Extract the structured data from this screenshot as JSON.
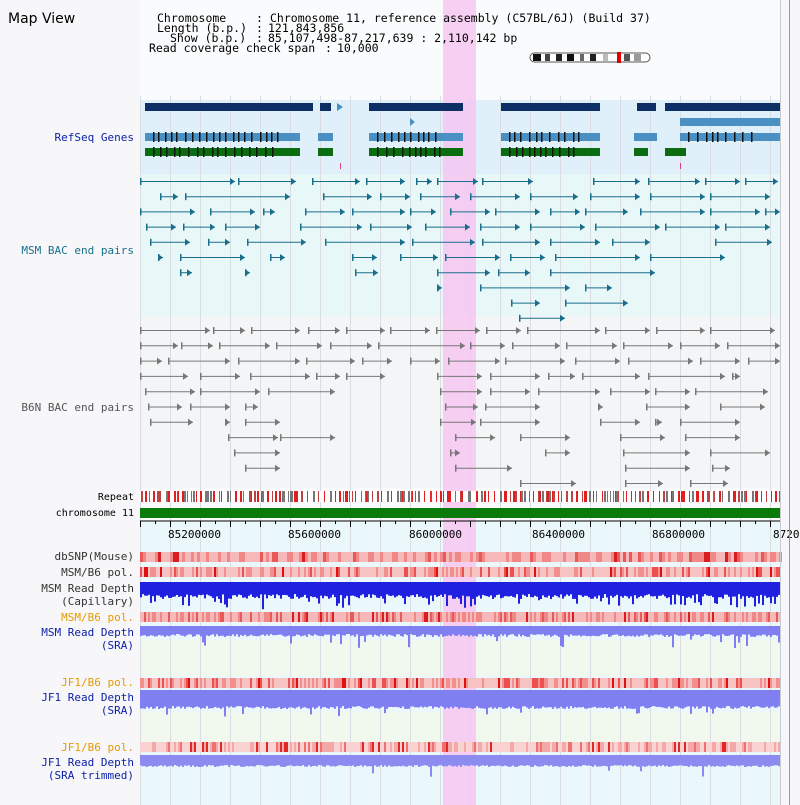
{
  "header": {
    "title": "Map View",
    "chromosome_label": "Chromosome",
    "chromosome_value": "Chromosome 11, reference assembly (C57BL/6J) (Build 37)",
    "length_label": "Length (b.p.)",
    "length_value": "121,843,856",
    "show_label": "Show (b.p.)",
    "show_value": "85,107,498-87,217,639 : 2,110,142 bp",
    "coverage_label": "Read coverage check span",
    "coverage_value": "10,000"
  },
  "tracks": {
    "refseq": "RefSeq Genes",
    "msm_bac": "MSM BAC end pairs",
    "b6n_bac": "B6N BAC end pairs",
    "repeat": "Repeat",
    "chromosome": "chromosome 11",
    "dbsnp": "dbSNP(Mouse)",
    "msm_b6_pol_1": "MSM/B6 pol.",
    "msm_depth_cap_1": "MSM Read Depth",
    "msm_depth_cap_2": "(Capillary)",
    "msm_b6_pol_2": "MSM/B6 pol.",
    "msm_depth_sra_1": "MSM Read Depth",
    "msm_depth_sra_2": "(SRA)",
    "jf1_b6_pol_1": "JF1/B6 pol.",
    "jf1_depth_sra_1": "JF1 Read Depth",
    "jf1_depth_sra_2": "(SRA)",
    "jf1_b6_pol_2": "JF1/B6 pol.",
    "jf1_depth_trim_1": "JF1 Read Depth",
    "jf1_depth_trim_2": "(SRA trimmed)"
  },
  "axis": {
    "ticks": [
      "85200000",
      "85600000",
      "86000000",
      "86400000",
      "86800000",
      "8720"
    ]
  },
  "colors": {
    "gene_dark": "#0d2f66",
    "gene_light": "#4a90c2",
    "gene_green": "#0a6e10",
    "msm_pair": "#1a6e8c",
    "b6n_pair": "#777777",
    "highlight": "#f7c6ef",
    "label_blue": "#0a1ea8",
    "label_orange": "#e69a00",
    "depth_blue": "#2020e0",
    "depth_light": "#7f7ff2",
    "chromosome_green": "#0a7a0a"
  }
}
